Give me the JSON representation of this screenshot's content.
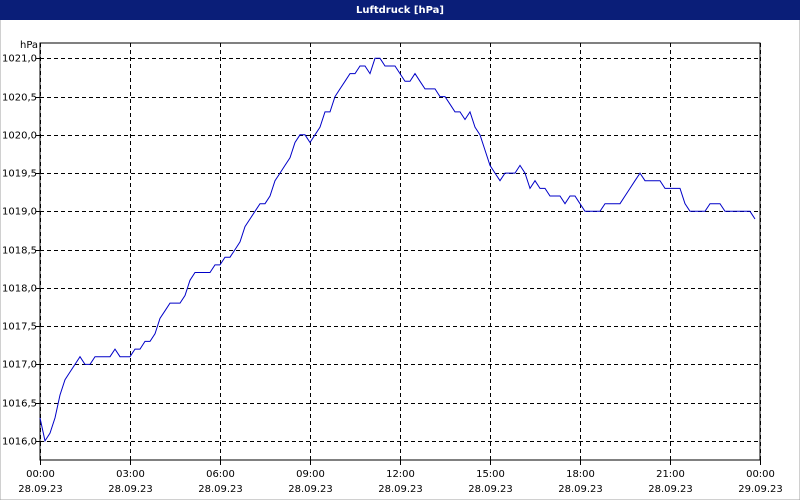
{
  "chart_data": {
    "type": "line",
    "title": "Luftdruck [hPa]",
    "y_label": "hPa",
    "color": "#0000c8",
    "grid": true,
    "xlim": [
      0,
      1440
    ],
    "xticks": [
      {
        "value": 0,
        "label": "00:00",
        "sublabel": "28.09.23"
      },
      {
        "value": 180,
        "label": "03:00",
        "sublabel": "28.09.23"
      },
      {
        "value": 360,
        "label": "06:00",
        "sublabel": "28.09.23"
      },
      {
        "value": 540,
        "label": "09:00",
        "sublabel": "28.09.23"
      },
      {
        "value": 720,
        "label": "12:00",
        "sublabel": "28.09.23"
      },
      {
        "value": 900,
        "label": "15:00",
        "sublabel": "28.09.23"
      },
      {
        "value": 1080,
        "label": "18:00",
        "sublabel": "28.09.23"
      },
      {
        "value": 1260,
        "label": "21:00",
        "sublabel": "28.09.23"
      },
      {
        "value": 1440,
        "label": "00:00",
        "sublabel": "29.09.23"
      }
    ],
    "ylim": [
      1015.75,
      1021.2
    ],
    "yticks": [
      {
        "value": 1016,
        "label": "1016,0"
      },
      {
        "value": 1016.5,
        "label": "1016,5"
      },
      {
        "value": 1017,
        "label": "1017,0"
      },
      {
        "value": 1017.5,
        "label": "1017,5"
      },
      {
        "value": 1018,
        "label": "1018,0"
      },
      {
        "value": 1018.5,
        "label": "1018,5"
      },
      {
        "value": 1019,
        "label": "1019,0"
      },
      {
        "value": 1019.5,
        "label": "1019,5"
      },
      {
        "value": 1020,
        "label": "1020,0"
      },
      {
        "value": 1020.5,
        "label": "1020,5"
      },
      {
        "value": 1021,
        "label": "1021,0"
      }
    ],
    "x": [
      0,
      10,
      20,
      30,
      40,
      50,
      60,
      70,
      80,
      90,
      100,
      110,
      120,
      130,
      140,
      150,
      160,
      170,
      180,
      190,
      200,
      210,
      220,
      230,
      240,
      250,
      260,
      270,
      280,
      290,
      300,
      310,
      320,
      330,
      340,
      350,
      360,
      370,
      380,
      390,
      400,
      410,
      420,
      430,
      440,
      450,
      460,
      470,
      480,
      490,
      500,
      510,
      520,
      530,
      540,
      550,
      560,
      570,
      580,
      590,
      600,
      610,
      620,
      630,
      640,
      650,
      660,
      670,
      680,
      690,
      700,
      710,
      720,
      730,
      740,
      750,
      760,
      770,
      780,
      790,
      800,
      810,
      820,
      830,
      840,
      850,
      860,
      870,
      880,
      890,
      900,
      910,
      920,
      930,
      940,
      950,
      960,
      970,
      980,
      990,
      1000,
      1010,
      1020,
      1030,
      1040,
      1050,
      1060,
      1070,
      1080,
      1090,
      1100,
      1110,
      1120,
      1130,
      1140,
      1150,
      1160,
      1170,
      1180,
      1190,
      1200,
      1210,
      1220,
      1230,
      1240,
      1250,
      1260,
      1270,
      1280,
      1290,
      1300,
      1310,
      1320,
      1330,
      1340,
      1350,
      1360,
      1370,
      1380,
      1390,
      1400,
      1410,
      1420,
      1430
    ],
    "values": [
      1016.3,
      1016.0,
      1016.1,
      1016.3,
      1016.6,
      1016.8,
      1016.9,
      1017.0,
      1017.1,
      1017.0,
      1017.0,
      1017.1,
      1017.1,
      1017.1,
      1017.1,
      1017.2,
      1017.1,
      1017.1,
      1017.1,
      1017.2,
      1017.2,
      1017.3,
      1017.3,
      1017.4,
      1017.6,
      1017.7,
      1017.8,
      1017.8,
      1017.8,
      1017.9,
      1018.1,
      1018.2,
      1018.2,
      1018.2,
      1018.2,
      1018.3,
      1018.3,
      1018.4,
      1018.4,
      1018.5,
      1018.6,
      1018.8,
      1018.9,
      1019.0,
      1019.1,
      1019.1,
      1019.2,
      1019.4,
      1019.5,
      1019.6,
      1019.7,
      1019.9,
      1020.0,
      1020.0,
      1019.9,
      1020.0,
      1020.1,
      1020.3,
      1020.3,
      1020.5,
      1020.6,
      1020.7,
      1020.8,
      1020.8,
      1020.9,
      1020.9,
      1020.8,
      1021.0,
      1021.0,
      1020.9,
      1020.9,
      1020.9,
      1020.8,
      1020.7,
      1020.7,
      1020.8,
      1020.7,
      1020.6,
      1020.6,
      1020.6,
      1020.5,
      1020.5,
      1020.4,
      1020.3,
      1020.3,
      1020.2,
      1020.3,
      1020.1,
      1020.0,
      1019.8,
      1019.6,
      1019.5,
      1019.4,
      1019.5,
      1019.5,
      1019.5,
      1019.6,
      1019.5,
      1019.3,
      1019.4,
      1019.3,
      1019.3,
      1019.2,
      1019.2,
      1019.2,
      1019.1,
      1019.2,
      1019.2,
      1019.1,
      1019.0,
      1019.0,
      1019.0,
      1019.0,
      1019.1,
      1019.1,
      1019.1,
      1019.1,
      1019.2,
      1019.3,
      1019.4,
      1019.5,
      1019.4,
      1019.4,
      1019.4,
      1019.4,
      1019.3,
      1019.3,
      1019.3,
      1019.3,
      1019.1,
      1019.0,
      1019.0,
      1019.0,
      1019.0,
      1019.1,
      1019.1,
      1019.1,
      1019.0,
      1019.0,
      1019.0,
      1019.0,
      1019.0,
      1019.0,
      1018.9
    ]
  }
}
